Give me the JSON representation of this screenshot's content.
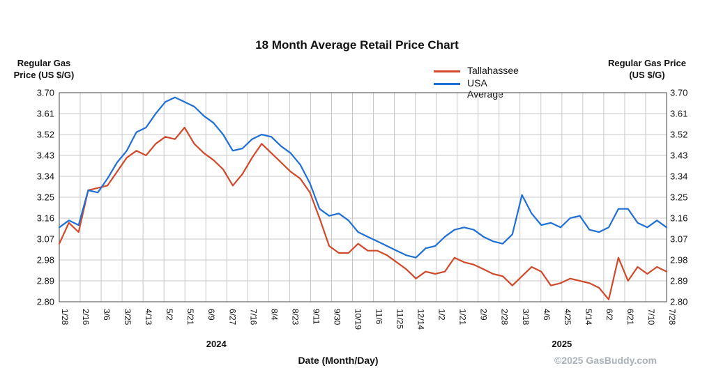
{
  "chart_data": {
    "type": "line",
    "title": "18 Month Average Retail Price Chart",
    "ylabel_left": "Regular Gas Price (US $/G)",
    "ylabel_right": "Regular Gas Price (US $/G)",
    "xlabel": "Date (Month/Day)",
    "ylim": [
      2.8,
      3.7
    ],
    "yticks": [
      "3.70",
      "3.61",
      "3.52",
      "3.43",
      "3.34",
      "3.25",
      "3.16",
      "3.07",
      "2.98",
      "2.89",
      "2.80"
    ],
    "xticks": [
      "1/28",
      "2/16",
      "3/6",
      "3/25",
      "4/13",
      "5/2",
      "5/21",
      "6/9",
      "6/27",
      "7/16",
      "8/4",
      "8/23",
      "9/11",
      "9/30",
      "10/19",
      "11/6",
      "11/25",
      "12/14",
      "1/2",
      "1/21",
      "2/9",
      "2/28",
      "3/18",
      "4/6",
      "4/25",
      "5/14",
      "6/2",
      "6/21",
      "7/10",
      "7/28"
    ],
    "year_labels": [
      {
        "label": "2024",
        "tick_index": 7.5
      },
      {
        "label": "2025",
        "tick_index": 24
      }
    ],
    "grid": true,
    "legend_position": "top-right",
    "credit": "©2025 GasBuddy.com",
    "series": [
      {
        "name": "Tallahassee",
        "color": "#d1492a",
        "values": [
          3.05,
          3.14,
          3.1,
          3.28,
          3.29,
          3.3,
          3.36,
          3.42,
          3.45,
          3.43,
          3.48,
          3.51,
          3.5,
          3.55,
          3.48,
          3.44,
          3.41,
          3.37,
          3.3,
          3.35,
          3.42,
          3.48,
          3.44,
          3.4,
          3.36,
          3.33,
          3.27,
          3.16,
          3.04,
          3.01,
          3.01,
          3.05,
          3.02,
          3.02,
          3.0,
          2.97,
          2.94,
          2.9,
          2.93,
          2.92,
          2.93,
          2.99,
          2.97,
          2.96,
          2.94,
          2.92,
          2.91,
          2.87,
          2.91,
          2.95,
          2.93,
          2.87,
          2.88,
          2.9,
          2.89,
          2.88,
          2.86,
          2.81,
          2.99,
          2.89,
          2.95,
          2.92,
          2.95,
          2.93
        ]
      },
      {
        "name": "USA Average",
        "color": "#1f6fd6",
        "values": [
          3.12,
          3.15,
          3.13,
          3.28,
          3.27,
          3.33,
          3.4,
          3.45,
          3.53,
          3.55,
          3.61,
          3.66,
          3.68,
          3.66,
          3.64,
          3.6,
          3.57,
          3.52,
          3.45,
          3.46,
          3.5,
          3.52,
          3.51,
          3.47,
          3.44,
          3.39,
          3.31,
          3.2,
          3.17,
          3.18,
          3.15,
          3.1,
          3.08,
          3.06,
          3.04,
          3.02,
          3.0,
          2.99,
          3.03,
          3.04,
          3.08,
          3.11,
          3.12,
          3.11,
          3.08,
          3.06,
          3.05,
          3.09,
          3.26,
          3.18,
          3.13,
          3.14,
          3.12,
          3.16,
          3.17,
          3.11,
          3.1,
          3.12,
          3.2,
          3.2,
          3.14,
          3.12,
          3.15,
          3.12
        ]
      }
    ]
  }
}
